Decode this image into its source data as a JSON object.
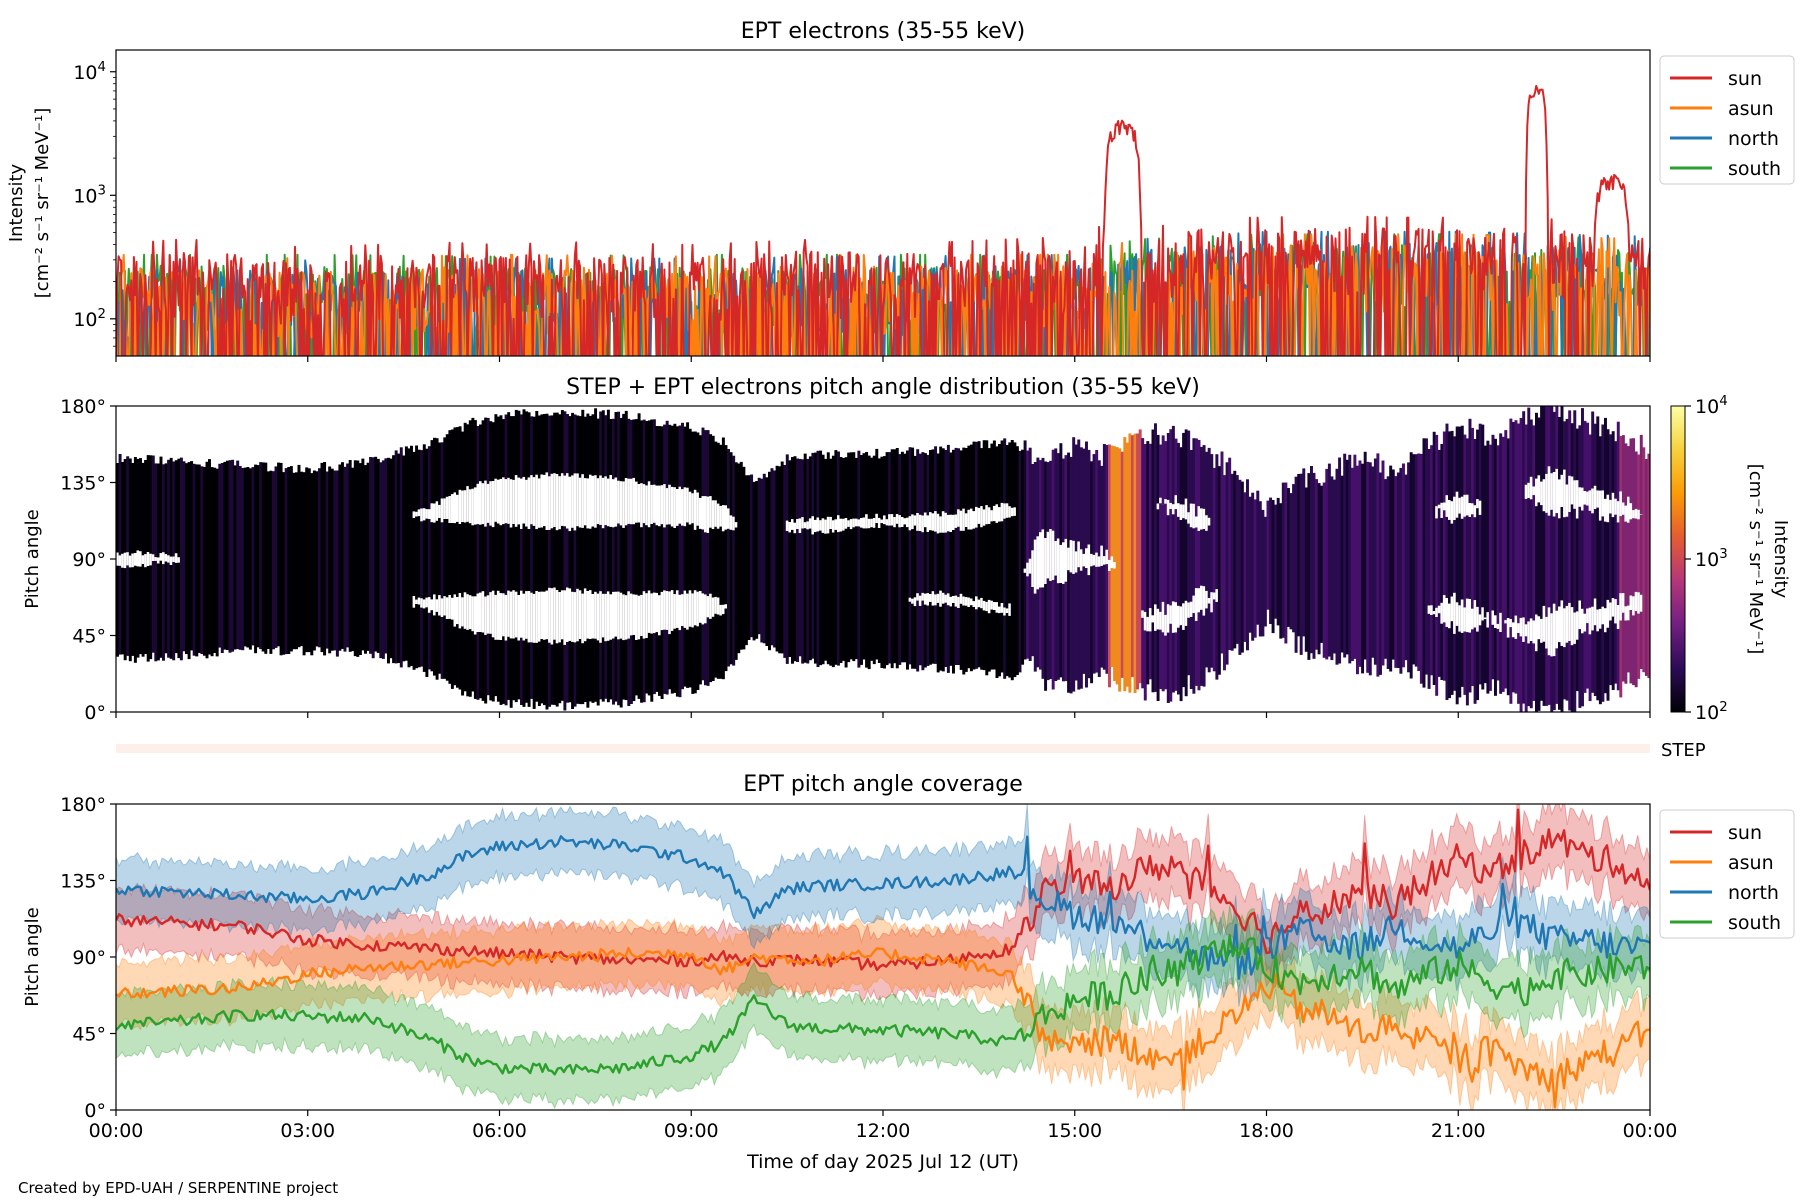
{
  "credit": "Created by EPD-UAH / SERPENTINE project",
  "colors": {
    "sun": "#d62728",
    "asun": "#ff7f0e",
    "north": "#1f77b4",
    "south": "#2ca02c"
  },
  "chart_data": [
    {
      "type": "line",
      "title": "EPT electrons (35-55 keV)",
      "ylabel": [
        "Intensity",
        "[cm⁻² s⁻¹ sr⁻¹ MeV⁻¹]"
      ],
      "yscale": "log",
      "ylim": [
        50,
        15000
      ],
      "yticks": [
        {
          "v": 10000,
          "b": "10",
          "e": "4"
        },
        {
          "v": 1000,
          "b": "10",
          "e": "3"
        },
        {
          "v": 100,
          "b": "10",
          "e": "2"
        }
      ],
      "xlim": [
        0,
        24
      ],
      "x_unit": "hours",
      "legend": "outside-right",
      "series": [
        {
          "name": "sun",
          "color": "#d62728",
          "baseline": [
            [
              0,
              180
            ],
            [
              1,
              200
            ],
            [
              2,
              190
            ],
            [
              3,
              170
            ],
            [
              4,
              180
            ],
            [
              5,
              190
            ],
            [
              6,
              180
            ],
            [
              7,
              190
            ],
            [
              8,
              185
            ],
            [
              9,
              180
            ],
            [
              10,
              190
            ],
            [
              11,
              200
            ],
            [
              12,
              200
            ],
            [
              13,
              190
            ],
            [
              14,
              200
            ],
            [
              15,
              210
            ],
            [
              15.45,
              260
            ],
            [
              15.9,
              250
            ],
            [
              16.5,
              260
            ],
            [
              17,
              300
            ],
            [
              18,
              300
            ],
            [
              19,
              310
            ],
            [
              20,
              300
            ],
            [
              21,
              300
            ],
            [
              22,
              300
            ],
            [
              23,
              280
            ],
            [
              24,
              250
            ]
          ],
          "events": [
            {
              "t0": 15.45,
              "t1": 16.05,
              "peak": 3500
            },
            {
              "t0": 22.05,
              "t1": 22.4,
              "peak": 7000
            },
            {
              "t0": 23.1,
              "t1": 23.7,
              "peak": 1300
            }
          ]
        },
        {
          "name": "asun",
          "color": "#ff7f0e",
          "baseline": [
            [
              0,
              150
            ],
            [
              3,
              140
            ],
            [
              6,
              150
            ],
            [
              9,
              145
            ],
            [
              12,
              150
            ],
            [
              15,
              150
            ],
            [
              16,
              200
            ],
            [
              18,
              220
            ],
            [
              21,
              220
            ],
            [
              24,
              200
            ]
          ]
        },
        {
          "name": "north",
          "color": "#1f77b4",
          "baseline": [
            [
              0,
              140
            ],
            [
              3,
              135
            ],
            [
              6,
              140
            ],
            [
              9,
              140
            ],
            [
              12,
              145
            ],
            [
              15,
              150
            ],
            [
              16,
              200
            ],
            [
              18,
              230
            ],
            [
              21,
              230
            ],
            [
              24,
              210
            ]
          ]
        },
        {
          "name": "south",
          "color": "#2ca02c",
          "baseline": [
            [
              0,
              150
            ],
            [
              3,
              150
            ],
            [
              6,
              145
            ],
            [
              9,
              150
            ],
            [
              12,
              150
            ],
            [
              15,
              150
            ],
            [
              16,
              200
            ],
            [
              18,
              220
            ],
            [
              21,
              220
            ],
            [
              24,
              200
            ]
          ]
        }
      ]
    },
    {
      "type": "heatmap",
      "title": "STEP + EPT electrons pitch angle distribution (35-55 keV)",
      "ylabel": "Pitch angle",
      "ylim": [
        0,
        180
      ],
      "yticks": [
        "0°",
        "45°",
        "90°",
        "135°",
        "180°"
      ],
      "xlim": [
        0,
        24
      ],
      "colorbar": {
        "label": [
          "Intensity",
          "[cm⁻² s⁻¹ sr⁻¹ MeV⁻¹]"
        ],
        "scale": "log",
        "range": [
          100,
          10000
        ],
        "ticks": [
          {
            "v": 10000,
            "b": "10",
            "e": "4"
          },
          {
            "v": 1000,
            "b": "10",
            "e": "3"
          },
          {
            "v": 100,
            "b": "10",
            "e": "2"
          }
        ],
        "colormap": [
          "#000004",
          "#2c0b57",
          "#721f81",
          "#b5367a",
          "#e55c30",
          "#fb9b06",
          "#f7d13d",
          "#fcffa4"
        ]
      },
      "step_label": "STEP"
    },
    {
      "type": "line",
      "title": "EPT pitch angle coverage",
      "ylabel": "Pitch angle",
      "xlabel": "Time of day 2025 Jul 12 (UT)",
      "ylim": [
        0,
        180
      ],
      "yticks": [
        "0°",
        "45°",
        "90°",
        "135°",
        "180°"
      ],
      "xlim": [
        0,
        24
      ],
      "xticks": [
        "00:00",
        "03:00",
        "06:00",
        "09:00",
        "12:00",
        "15:00",
        "18:00",
        "21:00",
        "00:00"
      ],
      "legend": "outside-right",
      "band_halfwidth": 18,
      "series": [
        {
          "name": "sun",
          "color": "#d62728",
          "values": [
            [
              0,
              112
            ],
            [
              1,
              110
            ],
            [
              2,
              108
            ],
            [
              3,
              100
            ],
            [
              4,
              97
            ],
            [
              5,
              95
            ],
            [
              6,
              92
            ],
            [
              7,
              90
            ],
            [
              8,
              88
            ],
            [
              9,
              88
            ],
            [
              9.5,
              90
            ],
            [
              10,
              88
            ],
            [
              11,
              88
            ],
            [
              12,
              85
            ],
            [
              13,
              88
            ],
            [
              14,
              95
            ],
            [
              14.3,
              110
            ],
            [
              14.5,
              130
            ],
            [
              15,
              135
            ],
            [
              15.5,
              130
            ],
            [
              16,
              140
            ],
            [
              16.5,
              145
            ],
            [
              17,
              135
            ],
            [
              17.5,
              120
            ],
            [
              17.8,
              110
            ],
            [
              18,
              100
            ],
            [
              18.5,
              115
            ],
            [
              19,
              120
            ],
            [
              19.5,
              130
            ],
            [
              20,
              120
            ],
            [
              20.5,
              135
            ],
            [
              21,
              148
            ],
            [
              21.5,
              140
            ],
            [
              22,
              150
            ],
            [
              22.5,
              160
            ],
            [
              23,
              150
            ],
            [
              23.5,
              145
            ],
            [
              24,
              132
            ]
          ]
        },
        {
          "name": "asun",
          "color": "#ff7f0e",
          "values": [
            [
              0,
              68
            ],
            [
              1,
              70
            ],
            [
              2,
              72
            ],
            [
              3,
              80
            ],
            [
              4,
              84
            ],
            [
              5,
              86
            ],
            [
              6,
              88
            ],
            [
              7,
              90
            ],
            [
              8,
              92
            ],
            [
              9,
              92
            ],
            [
              9.5,
              82
            ],
            [
              10,
              90
            ],
            [
              11,
              88
            ],
            [
              12,
              92
            ],
            [
              13,
              88
            ],
            [
              14,
              80
            ],
            [
              14.3,
              60
            ],
            [
              14.5,
              40
            ],
            [
              15,
              35
            ],
            [
              15.5,
              42
            ],
            [
              16,
              35
            ],
            [
              16.5,
              30
            ],
            [
              17,
              40
            ],
            [
              17.5,
              55
            ],
            [
              17.8,
              65
            ],
            [
              18,
              75
            ],
            [
              18.5,
              60
            ],
            [
              19,
              55
            ],
            [
              19.5,
              45
            ],
            [
              20,
              50
            ],
            [
              20.5,
              40
            ],
            [
              21,
              30
            ],
            [
              21.5,
              35
            ],
            [
              22,
              25
            ],
            [
              22.5,
              18
            ],
            [
              23,
              30
            ],
            [
              23.5,
              35
            ],
            [
              24,
              48
            ]
          ]
        },
        {
          "name": "north",
          "color": "#1f77b4",
          "values": [
            [
              0,
              130
            ],
            [
              1,
              128
            ],
            [
              2,
              126
            ],
            [
              3,
              124
            ],
            [
              4,
              128
            ],
            [
              5,
              140
            ],
            [
              5.5,
              150
            ],
            [
              6,
              155
            ],
            [
              7,
              158
            ],
            [
              8,
              155
            ],
            [
              9,
              148
            ],
            [
              9.5,
              140
            ],
            [
              10,
              115
            ],
            [
              10.5,
              130
            ],
            [
              11,
              132
            ],
            [
              12,
              133
            ],
            [
              13,
              135
            ],
            [
              14,
              140
            ],
            [
              14.5,
              125
            ],
            [
              15,
              115
            ],
            [
              15.5,
              112
            ],
            [
              16,
              105
            ],
            [
              16.5,
              100
            ],
            [
              17,
              90
            ],
            [
              17.5,
              85
            ],
            [
              17.8,
              88
            ],
            [
              18,
              95
            ],
            [
              18.5,
              105
            ],
            [
              19,
              100
            ],
            [
              19.5,
              95
            ],
            [
              20,
              110
            ],
            [
              20.5,
              100
            ],
            [
              21,
              95
            ],
            [
              21.5,
              105
            ],
            [
              22,
              110
            ],
            [
              22.5,
              100
            ],
            [
              23,
              100
            ],
            [
              23.5,
              96
            ],
            [
              24,
              95
            ]
          ]
        },
        {
          "name": "south",
          "color": "#2ca02c",
          "values": [
            [
              0,
              50
            ],
            [
              1,
              52
            ],
            [
              2,
              56
            ],
            [
              3,
              55
            ],
            [
              4,
              54
            ],
            [
              5,
              40
            ],
            [
              5.5,
              30
            ],
            [
              6,
              25
            ],
            [
              7,
              23
            ],
            [
              8,
              25
            ],
            [
              9,
              32
            ],
            [
              9.5,
              40
            ],
            [
              10,
              65
            ],
            [
              10.5,
              50
            ],
            [
              11,
              48
            ],
            [
              12,
              47
            ],
            [
              13,
              45
            ],
            [
              14,
              40
            ],
            [
              14.5,
              55
            ],
            [
              15,
              65
            ],
            [
              15.5,
              68
            ],
            [
              16,
              75
            ],
            [
              16.5,
              80
            ],
            [
              17,
              90
            ],
            [
              17.5,
              95
            ],
            [
              17.8,
              92
            ],
            [
              18,
              85
            ],
            [
              18.5,
              75
            ],
            [
              19,
              80
            ],
            [
              19.5,
              85
            ],
            [
              20,
              70
            ],
            [
              20.5,
              80
            ],
            [
              21,
              85
            ],
            [
              21.5,
              75
            ],
            [
              22,
              70
            ],
            [
              22.5,
              80
            ],
            [
              23,
              80
            ],
            [
              23.5,
              84
            ],
            [
              24,
              85
            ]
          ]
        }
      ]
    }
  ]
}
